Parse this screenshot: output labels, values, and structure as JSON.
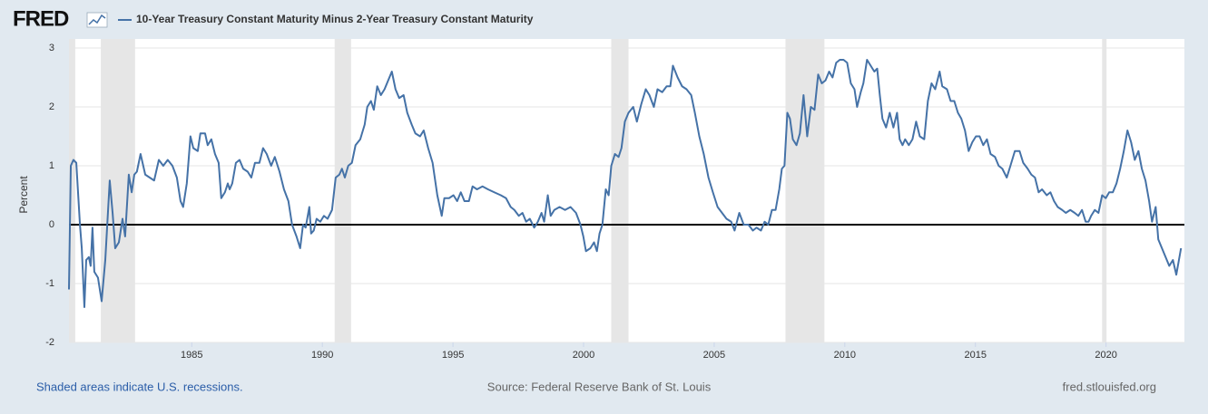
{
  "chart_data": {
    "type": "line",
    "logo": "FRED",
    "ylabel": "Percent",
    "note": "Shaded areas indicate U.S. recessions.",
    "source": "Source: Federal Reserve Bank of St. Louis",
    "site": "fred.stlouisfed.org",
    "xlim": [
      1980.3,
      2023.0
    ],
    "xticks": [
      1985,
      1990,
      1995,
      2000,
      2005,
      2010,
      2015,
      2020
    ],
    "ylim": [
      -2,
      3
    ],
    "yticks": [
      -2,
      -1,
      0,
      1,
      2,
      3
    ],
    "grid": "y",
    "zero_line": true,
    "recessions": [
      [
        1980.3,
        1980.54
      ],
      [
        1981.52,
        1982.83
      ],
      [
        1990.47,
        1991.1
      ],
      [
        2001.06,
        2001.72
      ],
      [
        2007.73,
        2009.22
      ],
      [
        2019.85,
        2020.02
      ]
    ],
    "recession_color": "#e6e6e6",
    "x": [
      1980.3,
      1980.37,
      1980.47,
      1980.58,
      1980.72,
      1980.79,
      1980.89,
      1980.96,
      1981.06,
      1981.13,
      1981.2,
      1981.27,
      1981.41,
      1981.55,
      1981.69,
      1981.86,
      1981.97,
      1982.07,
      1982.21,
      1982.35,
      1982.45,
      1982.59,
      1982.7,
      1982.8,
      1982.9,
      1983.04,
      1983.22,
      1983.39,
      1983.56,
      1983.74,
      1983.91,
      1984.08,
      1984.26,
      1984.43,
      1984.57,
      1984.67,
      1984.81,
      1984.95,
      1985.06,
      1985.23,
      1985.33,
      1985.51,
      1985.61,
      1985.75,
      1985.89,
      1986.03,
      1986.13,
      1986.27,
      1986.38,
      1986.45,
      1986.55,
      1986.69,
      1986.83,
      1986.97,
      1987.14,
      1987.28,
      1987.42,
      1987.59,
      1987.73,
      1987.87,
      1988.04,
      1988.18,
      1988.36,
      1988.53,
      1988.7,
      1988.84,
      1989.01,
      1989.15,
      1989.26,
      1989.36,
      1989.5,
      1989.57,
      1989.67,
      1989.78,
      1989.92,
      1990.06,
      1990.2,
      1990.37,
      1990.51,
      1990.65,
      1990.75,
      1990.86,
      1990.99,
      1991.13,
      1991.27,
      1991.45,
      1991.62,
      1991.72,
      1991.86,
      1991.97,
      1992.1,
      1992.24,
      1992.38,
      1992.52,
      1992.66,
      1992.8,
      1992.94,
      1993.11,
      1993.25,
      1993.42,
      1993.56,
      1993.74,
      1993.88,
      1994.05,
      1994.22,
      1994.4,
      1994.57,
      1994.67,
      1994.85,
      1995.02,
      1995.16,
      1995.3,
      1995.44,
      1995.61,
      1995.75,
      1995.92,
      1996.13,
      1996.34,
      1996.58,
      1996.83,
      1997.03,
      1997.21,
      1997.35,
      1997.52,
      1997.66,
      1997.8,
      1997.94,
      1998.11,
      1998.25,
      1998.39,
      1998.49,
      1998.63,
      1998.74,
      1998.88,
      1999.08,
      1999.29,
      1999.5,
      1999.71,
      1999.88,
      1999.99,
      2000.09,
      2000.26,
      2000.4,
      2000.51,
      2000.61,
      2000.72,
      2000.85,
      2000.96,
      2001.06,
      2001.2,
      2001.34,
      2001.45,
      2001.58,
      2001.72,
      2001.9,
      2002.04,
      2002.21,
      2002.38,
      2002.52,
      2002.69,
      2002.83,
      2003.01,
      2003.18,
      2003.32,
      2003.42,
      2003.6,
      2003.77,
      2003.94,
      2004.12,
      2004.26,
      2004.43,
      2004.6,
      2004.78,
      2004.95,
      2005.13,
      2005.3,
      2005.47,
      2005.65,
      2005.78,
      2005.96,
      2006.13,
      2006.31,
      2006.48,
      2006.62,
      2006.79,
      2006.93,
      2007.07,
      2007.21,
      2007.35,
      2007.49,
      2007.59,
      2007.69,
      2007.8,
      2007.9,
      2008.01,
      2008.15,
      2008.28,
      2008.42,
      2008.56,
      2008.7,
      2008.84,
      2008.98,
      2009.12,
      2009.26,
      2009.4,
      2009.53,
      2009.67,
      2009.81,
      2009.95,
      2010.09,
      2010.23,
      2010.37,
      2010.47,
      2010.61,
      2010.71,
      2010.85,
      2010.99,
      2011.13,
      2011.24,
      2011.34,
      2011.44,
      2011.58,
      2011.72,
      2011.86,
      2012.0,
      2012.1,
      2012.21,
      2012.31,
      2012.45,
      2012.59,
      2012.73,
      2012.87,
      2013.04,
      2013.18,
      2013.32,
      2013.46,
      2013.63,
      2013.73,
      2013.91,
      2014.05,
      2014.19,
      2014.33,
      2014.46,
      2014.6,
      2014.74,
      2014.88,
      2015.02,
      2015.16,
      2015.3,
      2015.44,
      2015.58,
      2015.75,
      2015.89,
      2016.03,
      2016.2,
      2016.34,
      2016.51,
      2016.69,
      2016.83,
      2017.0,
      2017.14,
      2017.28,
      2017.42,
      2017.55,
      2017.73,
      2017.87,
      2018.01,
      2018.15,
      2018.32,
      2018.46,
      2018.63,
      2018.8,
      2018.94,
      2019.08,
      2019.22,
      2019.33,
      2019.43,
      2019.57,
      2019.71,
      2019.85,
      2019.99,
      2020.12,
      2020.26,
      2020.4,
      2020.54,
      2020.68,
      2020.82,
      2020.96,
      2021.1,
      2021.24,
      2021.37,
      2021.51,
      2021.65,
      2021.76,
      2021.9,
      2022.0,
      2022.14,
      2022.28,
      2022.42,
      2022.56,
      2022.69,
      2022.87
    ],
    "series": [
      {
        "name": "10-Year Treasury Constant Maturity Minus 2-Year Treasury Constant Maturity",
        "color": "#4572a7",
        "values": [
          -1.1,
          1.0,
          1.1,
          1.05,
          0,
          -0.4,
          -1.4,
          -0.6,
          -0.55,
          -0.7,
          -0.05,
          -0.8,
          -0.9,
          -1.3,
          -0.6,
          0.75,
          0.2,
          -0.4,
          -0.3,
          0.1,
          -0.2,
          0.85,
          0.55,
          0.85,
          0.9,
          1.2,
          0.85,
          0.8,
          0.75,
          1.1,
          1.0,
          1.1,
          1.0,
          0.8,
          0.4,
          0.3,
          0.7,
          1.5,
          1.3,
          1.25,
          1.55,
          1.55,
          1.35,
          1.45,
          1.2,
          1.05,
          0.45,
          0.55,
          0.7,
          0.6,
          0.7,
          1.05,
          1.1,
          0.95,
          0.9,
          0.8,
          1.05,
          1.05,
          1.3,
          1.2,
          1.0,
          1.15,
          0.9,
          0.6,
          0.4,
          0,
          -0.2,
          -0.4,
          0,
          -0.05,
          0.3,
          -0.15,
          -0.1,
          0.1,
          0.05,
          0.15,
          0.1,
          0.25,
          0.8,
          0.85,
          0.95,
          0.8,
          1.0,
          1.05,
          1.35,
          1.45,
          1.7,
          2.0,
          2.1,
          1.95,
          2.35,
          2.2,
          2.3,
          2.45,
          2.6,
          2.3,
          2.15,
          2.2,
          1.9,
          1.7,
          1.55,
          1.5,
          1.6,
          1.3,
          1.05,
          0.5,
          0.15,
          0.45,
          0.45,
          0.5,
          0.4,
          0.55,
          0.4,
          0.4,
          0.65,
          0.6,
          0.65,
          0.6,
          0.55,
          0.5,
          0.45,
          0.3,
          0.25,
          0.15,
          0.2,
          0.05,
          0.1,
          -0.05,
          0.05,
          0.2,
          0.05,
          0.5,
          0.15,
          0.25,
          0.3,
          0.25,
          0.3,
          0.2,
          0,
          -0.2,
          -0.45,
          -0.4,
          -0.3,
          -0.45,
          -0.15,
          0,
          0.6,
          0.5,
          1.0,
          1.2,
          1.15,
          1.3,
          1.75,
          1.9,
          2.0,
          1.75,
          2.05,
          2.3,
          2.2,
          2.0,
          2.3,
          2.25,
          2.35,
          2.35,
          2.7,
          2.5,
          2.35,
          2.3,
          2.2,
          1.9,
          1.5,
          1.2,
          0.8,
          0.55,
          0.3,
          0.2,
          0.1,
          0.05,
          -0.1,
          0.2,
          0,
          0,
          -0.1,
          -0.05,
          -0.1,
          0.05,
          0,
          0.25,
          0.25,
          0.6,
          0.95,
          1.0,
          1.9,
          1.8,
          1.45,
          1.35,
          1.55,
          2.2,
          1.5,
          2.0,
          1.95,
          2.55,
          2.4,
          2.45,
          2.6,
          2.5,
          2.75,
          2.8,
          2.8,
          2.75,
          2.4,
          2.3,
          2.0,
          2.25,
          2.4,
          2.8,
          2.7,
          2.6,
          2.65,
          2.2,
          1.8,
          1.65,
          1.9,
          1.65,
          1.9,
          1.45,
          1.35,
          1.45,
          1.35,
          1.45,
          1.75,
          1.5,
          1.45,
          2.1,
          2.4,
          2.3,
          2.6,
          2.35,
          2.3,
          2.1,
          2.1,
          1.9,
          1.8,
          1.6,
          1.25,
          1.4,
          1.5,
          1.5,
          1.35,
          1.45,
          1.2,
          1.15,
          1.0,
          0.95,
          0.8,
          1.0,
          1.25,
          1.25,
          1.05,
          0.95,
          0.85,
          0.8,
          0.55,
          0.6,
          0.5,
          0.55,
          0.4,
          0.3,
          0.25,
          0.2,
          0.25,
          0.2,
          0.15,
          0.25,
          0.05,
          0.05,
          0.15,
          0.25,
          0.2,
          0.5,
          0.45,
          0.55,
          0.55,
          0.7,
          0.95,
          1.25,
          1.6,
          1.4,
          1.1,
          1.25,
          0.95,
          0.75,
          0.4,
          0.05,
          0.3,
          -0.25,
          -0.4,
          -0.55,
          -0.7,
          -0.6,
          -0.85,
          -0.4
        ]
      }
    ]
  }
}
